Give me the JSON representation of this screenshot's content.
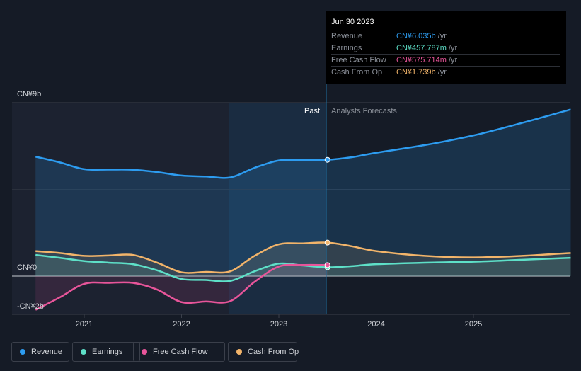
{
  "tooltip": {
    "date": "Jun 30 2023",
    "rows": [
      {
        "label": "Revenue",
        "value": "CN¥6.035b",
        "unit": "/yr",
        "color": "#2d9cf0"
      },
      {
        "label": "Earnings",
        "value": "CN¥457.787m",
        "unit": "/yr",
        "color": "#5ee0c8"
      },
      {
        "label": "Free Cash Flow",
        "value": "CN¥575.714m",
        "unit": "/yr",
        "color": "#e8559a"
      },
      {
        "label": "Cash From Op",
        "value": "CN¥1.739b",
        "unit": "/yr",
        "color": "#f2b46a"
      }
    ]
  },
  "legend": [
    {
      "label": "Revenue",
      "color": "#2d9cf0"
    },
    {
      "label": "Earnings",
      "color": "#5ee0c8"
    },
    {
      "label": "Free Cash Flow",
      "color": "#e8559a"
    },
    {
      "label": "Cash From Op",
      "color": "#f2b46a"
    }
  ],
  "chart_data": {
    "type": "line",
    "title": "",
    "xlabel": "",
    "ylabel": "",
    "currency_unit": "CN¥ billions",
    "x_ticks": [
      2021,
      2022,
      2023,
      2024,
      2025
    ],
    "xlim": [
      2020.27,
      2026.0
    ],
    "ylim": [
      -2,
      9
    ],
    "y_ticks": [
      {
        "value": 9,
        "label": "CN¥9b"
      },
      {
        "value": 0,
        "label": "CN¥0"
      },
      {
        "value": -2,
        "label": "-CN¥2b"
      }
    ],
    "divider_x": 2023.5,
    "past_label": "Past",
    "forecast_label": "Analysts Forecasts",
    "highlight_range": [
      2022.5,
      2023.5
    ],
    "series": [
      {
        "name": "Revenue",
        "color": "#2d9cf0",
        "fill": true,
        "x": [
          2020.5,
          2020.75,
          2021.0,
          2021.25,
          2021.5,
          2021.75,
          2022.0,
          2022.25,
          2022.5,
          2022.75,
          2023.0,
          2023.25,
          2023.5,
          2023.75,
          2024.0,
          2024.5,
          2025.0,
          2025.5,
          2026.0
        ],
        "values": [
          6.2,
          5.9,
          5.55,
          5.53,
          5.52,
          5.4,
          5.22,
          5.17,
          5.12,
          5.62,
          6.0,
          6.02,
          6.035,
          6.17,
          6.4,
          6.8,
          7.3,
          7.95,
          8.65
        ]
      },
      {
        "name": "Earnings",
        "color": "#5ee0c8",
        "fill": true,
        "x": [
          2020.5,
          2020.75,
          2021.0,
          2021.25,
          2021.5,
          2021.75,
          2022.0,
          2022.25,
          2022.5,
          2022.75,
          2023.0,
          2023.25,
          2023.5,
          2023.75,
          2024.0,
          2024.5,
          2025.0,
          2025.5,
          2026.0
        ],
        "values": [
          1.1,
          0.95,
          0.78,
          0.7,
          0.62,
          0.3,
          -0.15,
          -0.2,
          -0.25,
          0.25,
          0.65,
          0.55,
          0.458,
          0.52,
          0.62,
          0.7,
          0.75,
          0.85,
          0.95
        ]
      },
      {
        "name": "Free Cash Flow",
        "color": "#e8559a",
        "fill": true,
        "x": [
          2020.5,
          2020.75,
          2021.0,
          2021.25,
          2021.5,
          2021.75,
          2022.0,
          2022.25,
          2022.5,
          2022.75,
          2023.0,
          2023.25,
          2023.5
        ],
        "values": [
          -1.75,
          -1.1,
          -0.4,
          -0.35,
          -0.35,
          -0.7,
          -1.35,
          -1.32,
          -1.3,
          -0.3,
          0.5,
          0.58,
          0.576
        ]
      },
      {
        "name": "Cash From Op",
        "color": "#f2b46a",
        "fill": true,
        "x": [
          2020.5,
          2020.75,
          2021.0,
          2021.25,
          2021.5,
          2021.75,
          2022.0,
          2022.25,
          2022.5,
          2022.75,
          2023.0,
          2023.25,
          2023.5,
          2023.75,
          2024.0,
          2024.5,
          2025.0,
          2025.5,
          2026.0
        ],
        "values": [
          1.3,
          1.2,
          1.05,
          1.07,
          1.1,
          0.7,
          0.2,
          0.22,
          0.25,
          1.05,
          1.65,
          1.7,
          1.739,
          1.55,
          1.3,
          1.05,
          0.97,
          1.05,
          1.2
        ]
      }
    ]
  }
}
